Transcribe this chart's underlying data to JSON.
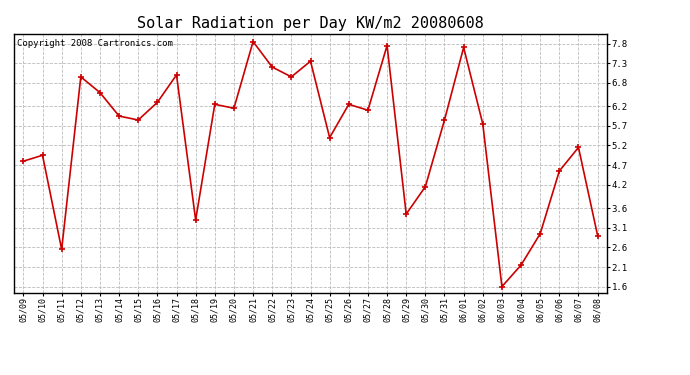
{
  "title": "Solar Radiation per Day KW/m2 20080608",
  "copyright_text": "Copyright 2008 Cartronics.com",
  "dates": [
    "05/09",
    "05/10",
    "05/11",
    "05/12",
    "05/13",
    "05/14",
    "05/15",
    "05/16",
    "05/17",
    "05/18",
    "05/19",
    "05/20",
    "05/21",
    "05/22",
    "05/23",
    "05/24",
    "05/25",
    "05/26",
    "05/27",
    "05/28",
    "05/29",
    "05/30",
    "05/31",
    "06/01",
    "06/02",
    "06/03",
    "06/04",
    "06/05",
    "06/06",
    "06/07",
    "06/08"
  ],
  "values": [
    4.8,
    4.95,
    2.55,
    6.95,
    6.55,
    5.95,
    5.85,
    6.3,
    7.0,
    3.3,
    6.25,
    6.15,
    7.85,
    7.2,
    6.95,
    7.35,
    5.4,
    6.25,
    6.1,
    7.75,
    3.45,
    4.15,
    5.85,
    7.7,
    5.75,
    1.6,
    2.15,
    2.95,
    4.55,
    5.15,
    2.9
  ],
  "line_color": "#cc0000",
  "marker": "+",
  "marker_color": "#cc0000",
  "bg_color": "#ffffff",
  "grid_color": "#bbbbbb",
  "yticks": [
    1.6,
    2.1,
    2.6,
    3.1,
    3.6,
    4.2,
    4.7,
    5.2,
    5.7,
    6.2,
    6.8,
    7.3,
    7.8
  ],
  "ylim": [
    1.45,
    8.05
  ],
  "title_fontsize": 11,
  "copyright_fontsize": 6.5,
  "xtick_fontsize": 6,
  "ytick_fontsize": 6.5
}
